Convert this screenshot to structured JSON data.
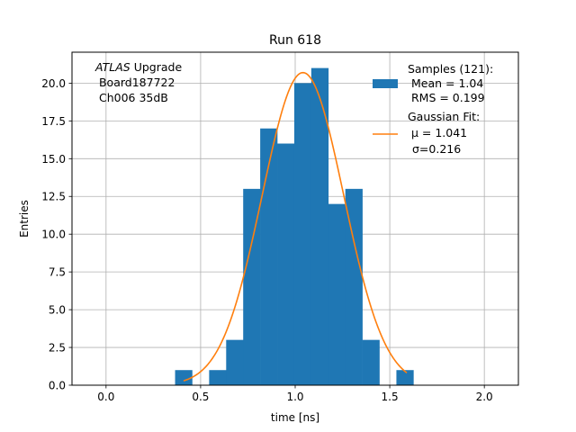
{
  "chart_data": {
    "type": "bar",
    "title": "Run 618",
    "xlabel": "time [ns]",
    "ylabel": "Entries",
    "xlim": [
      -0.18,
      2.18
    ],
    "ylim": [
      0,
      22.05
    ],
    "grid": true,
    "xticks": [
      {
        "value": 0.0,
        "label": "0.0"
      },
      {
        "value": 0.5,
        "label": "0.5"
      },
      {
        "value": 1.0,
        "label": "1.0"
      },
      {
        "value": 1.5,
        "label": "1.5"
      },
      {
        "value": 2.0,
        "label": "2.0"
      }
    ],
    "yticks": [
      {
        "value": 0.0,
        "label": "0.0"
      },
      {
        "value": 2.5,
        "label": "2.5"
      },
      {
        "value": 5.0,
        "label": "5.0"
      },
      {
        "value": 7.5,
        "label": "7.5"
      },
      {
        "value": 10.0,
        "label": "10.0"
      },
      {
        "value": 12.5,
        "label": "12.5"
      },
      {
        "value": 15.0,
        "label": "15.0"
      },
      {
        "value": 17.5,
        "label": "17.5"
      },
      {
        "value": 20.0,
        "label": "20.0"
      }
    ],
    "histogram": {
      "name": "Samples (121):",
      "color": "#1f77b4",
      "bin_start": 0.365,
      "bin_width": 0.09,
      "counts": [
        1,
        0,
        1,
        3,
        13,
        17,
        16,
        20,
        21,
        12,
        13,
        3,
        0,
        1
      ]
    },
    "fit": {
      "name": "Gaussian Fit:",
      "color": "#ff7f0e",
      "mu": 1.041,
      "sigma": 0.216,
      "amplitude": 20.7,
      "x_range": [
        0.41,
        1.59
      ]
    },
    "annotation": {
      "line1_italic": "ATLAS",
      "line1_rest": " Upgrade",
      "line2": " Board187722",
      "line3": " Ch006 35dB"
    },
    "legend": {
      "placement": "top-right",
      "samples_title": "Samples (121):",
      "samples_mean": " Mean = 1.04",
      "samples_rms": " RMS = 0.199",
      "fit_title": "Gaussian Fit:",
      "fit_mu": " μ = 1.041",
      "fit_sigma": "σ=0.216"
    }
  }
}
